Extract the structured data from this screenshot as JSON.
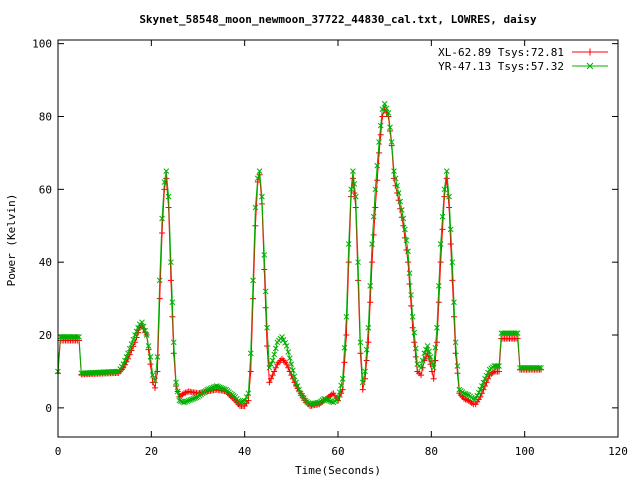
{
  "chart_data": {
    "type": "line",
    "title": "Skynet_58548_moon_newmoon_37722_44830_cal.txt, LOWRES, daisy",
    "xlabel": "Time(Seconds)",
    "ylabel": "Power (Kelvin)",
    "xlim": [
      0,
      120
    ],
    "ylim": [
      -8,
      101
    ],
    "xticks": [
      0,
      20,
      40,
      60,
      80,
      100,
      120
    ],
    "yticks": [
      0,
      20,
      40,
      60,
      80,
      100
    ],
    "grid": false,
    "legend_position": "top-right",
    "series": [
      {
        "name": "XL-62.89 Tsys:72.81",
        "color": "#ff0000",
        "marker": "plus",
        "points": [
          [
            0,
            9.5
          ],
          [
            0.5,
            18.5
          ],
          [
            4.5,
            18.5
          ],
          [
            5,
            9.2
          ],
          [
            13,
            9.6
          ],
          [
            14,
            11
          ],
          [
            15,
            13.5
          ],
          [
            16.5,
            18
          ],
          [
            17.5,
            22
          ],
          [
            18,
            22.5
          ],
          [
            19,
            20
          ],
          [
            19.8,
            12
          ],
          [
            20.3,
            7
          ],
          [
            20.8,
            5.5
          ],
          [
            21.3,
            10
          ],
          [
            21.8,
            30
          ],
          [
            22.3,
            48
          ],
          [
            22.8,
            60
          ],
          [
            23.2,
            63
          ],
          [
            23.7,
            55
          ],
          [
            24.2,
            35
          ],
          [
            24.8,
            15
          ],
          [
            25.3,
            6
          ],
          [
            26,
            3
          ],
          [
            27,
            4
          ],
          [
            28,
            4.5
          ],
          [
            30,
            4
          ],
          [
            32,
            4.5
          ],
          [
            34,
            5
          ],
          [
            36,
            4.5
          ],
          [
            38,
            2
          ],
          [
            39,
            0.5
          ],
          [
            40,
            0.5
          ],
          [
            40.8,
            2
          ],
          [
            41.3,
            10
          ],
          [
            41.8,
            30
          ],
          [
            42.3,
            50
          ],
          [
            42.8,
            62
          ],
          [
            43.2,
            64
          ],
          [
            43.7,
            56
          ],
          [
            44.2,
            38
          ],
          [
            44.8,
            17
          ],
          [
            45.3,
            7
          ],
          [
            46,
            9
          ],
          [
            47,
            12
          ],
          [
            48,
            13.5
          ],
          [
            49,
            12
          ],
          [
            50,
            9
          ],
          [
            51,
            6
          ],
          [
            52,
            4
          ],
          [
            53,
            2
          ],
          [
            54,
            0.5
          ],
          [
            56,
            1
          ],
          [
            57,
            2
          ],
          [
            58,
            3
          ],
          [
            59,
            4
          ],
          [
            60,
            2
          ],
          [
            61,
            5
          ],
          [
            61.8,
            20
          ],
          [
            62.3,
            40
          ],
          [
            62.8,
            58
          ],
          [
            63.2,
            63
          ],
          [
            63.8,
            55
          ],
          [
            64.3,
            35
          ],
          [
            64.8,
            15
          ],
          [
            65.3,
            5
          ],
          [
            65.8,
            8
          ],
          [
            66.5,
            18
          ],
          [
            67.3,
            40
          ],
          [
            68,
            55
          ],
          [
            68.8,
            70
          ],
          [
            69.5,
            80
          ],
          [
            70,
            82
          ],
          [
            70.8,
            80
          ],
          [
            71.5,
            72
          ],
          [
            72,
            63
          ],
          [
            73,
            57
          ],
          [
            74,
            50
          ],
          [
            75,
            40
          ],
          [
            76,
            22
          ],
          [
            77,
            10
          ],
          [
            77.8,
            9
          ],
          [
            78.5,
            13
          ],
          [
            79.2,
            15
          ],
          [
            79.8,
            12
          ],
          [
            80.5,
            8
          ],
          [
            81.2,
            18
          ],
          [
            82,
            40
          ],
          [
            82.8,
            58
          ],
          [
            83.3,
            63
          ],
          [
            83.8,
            55
          ],
          [
            84.5,
            35
          ],
          [
            85.2,
            15
          ],
          [
            86,
            4
          ],
          [
            87,
            2.5
          ],
          [
            88,
            2
          ],
          [
            89,
            1
          ],
          [
            89.5,
            1
          ],
          [
            90.5,
            3
          ],
          [
            91.5,
            6
          ],
          [
            92.5,
            9
          ],
          [
            93.5,
            10
          ],
          [
            94.5,
            10
          ],
          [
            95,
            19
          ],
          [
            98.5,
            19
          ],
          [
            99,
            10.5
          ],
          [
            103.5,
            10.5
          ]
        ]
      },
      {
        "name": "YR-47.13 Tsys:57.32",
        "color": "#00b000",
        "marker": "cross",
        "points": [
          [
            0,
            10
          ],
          [
            0.5,
            19.5
          ],
          [
            4.5,
            19.5
          ],
          [
            5,
            9.5
          ],
          [
            13,
            10
          ],
          [
            14,
            12
          ],
          [
            15,
            15
          ],
          [
            16.5,
            20
          ],
          [
            17.5,
            23
          ],
          [
            18,
            23.5
          ],
          [
            19,
            20
          ],
          [
            19.8,
            14
          ],
          [
            20.3,
            9
          ],
          [
            20.8,
            7.5
          ],
          [
            21.3,
            14
          ],
          [
            21.8,
            35
          ],
          [
            22.3,
            52
          ],
          [
            22.8,
            62
          ],
          [
            23.2,
            65
          ],
          [
            23.7,
            58
          ],
          [
            24.2,
            40
          ],
          [
            24.8,
            18
          ],
          [
            25.3,
            7
          ],
          [
            26,
            2
          ],
          [
            27,
            1.5
          ],
          [
            28,
            2
          ],
          [
            30,
            3
          ],
          [
            32,
            5
          ],
          [
            34,
            6
          ],
          [
            36,
            5
          ],
          [
            38,
            3
          ],
          [
            39,
            1.5
          ],
          [
            40,
            2
          ],
          [
            40.8,
            4
          ],
          [
            41.3,
            15
          ],
          [
            41.8,
            35
          ],
          [
            42.3,
            55
          ],
          [
            42.8,
            63
          ],
          [
            43.2,
            65
          ],
          [
            43.7,
            58
          ],
          [
            44.2,
            42
          ],
          [
            44.8,
            22
          ],
          [
            45.3,
            11
          ],
          [
            46,
            13
          ],
          [
            47,
            18
          ],
          [
            48,
            19.5
          ],
          [
            49,
            17
          ],
          [
            50,
            12
          ],
          [
            51,
            7
          ],
          [
            52,
            4
          ],
          [
            53,
            2
          ],
          [
            54,
            1
          ],
          [
            56,
            1.5
          ],
          [
            57,
            2.5
          ],
          [
            58,
            2
          ],
          [
            59,
            1.5
          ],
          [
            60,
            2.5
          ],
          [
            61,
            8
          ],
          [
            61.8,
            25
          ],
          [
            62.3,
            45
          ],
          [
            62.8,
            60
          ],
          [
            63.2,
            65
          ],
          [
            63.8,
            58
          ],
          [
            64.3,
            40
          ],
          [
            64.8,
            18
          ],
          [
            65.3,
            7
          ],
          [
            65.8,
            10
          ],
          [
            66.5,
            22
          ],
          [
            67.3,
            45
          ],
          [
            68,
            60
          ],
          [
            68.8,
            73
          ],
          [
            69.5,
            82
          ],
          [
            70,
            83.5
          ],
          [
            70.8,
            81
          ],
          [
            71.5,
            73
          ],
          [
            72,
            65
          ],
          [
            73,
            59
          ],
          [
            74,
            52
          ],
          [
            75,
            43
          ],
          [
            76,
            25
          ],
          [
            77,
            12
          ],
          [
            77.8,
            11
          ],
          [
            78.5,
            15
          ],
          [
            79.2,
            17
          ],
          [
            79.8,
            14
          ],
          [
            80.5,
            11
          ],
          [
            81.2,
            22
          ],
          [
            82,
            45
          ],
          [
            82.8,
            60
          ],
          [
            83.3,
            65
          ],
          [
            83.8,
            58
          ],
          [
            84.5,
            40
          ],
          [
            85.2,
            18
          ],
          [
            86,
            5
          ],
          [
            87,
            4
          ],
          [
            88,
            3.5
          ],
          [
            89,
            2.5
          ],
          [
            89.5,
            2.5
          ],
          [
            90.5,
            5
          ],
          [
            91.5,
            8
          ],
          [
            92.5,
            10.5
          ],
          [
            93.5,
            11.5
          ],
          [
            94.5,
            11.5
          ],
          [
            95,
            20.5
          ],
          [
            98.5,
            20.5
          ],
          [
            99,
            11
          ],
          [
            103.5,
            11
          ]
        ]
      }
    ]
  }
}
